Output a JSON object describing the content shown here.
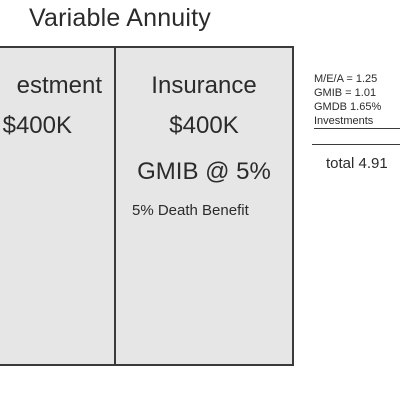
{
  "title": "Variable Annuity",
  "investment": {
    "label": "estment",
    "amount": "$400K"
  },
  "insurance": {
    "label": "Insurance",
    "amount": "$400K",
    "rider": "GMIB @ 5%",
    "death_benefit": "5% Death Benefit"
  },
  "fees": {
    "lines": [
      "M/E/A = 1.25",
      "GMIB = 1.01",
      "GMDB 1.65%",
      "Investments"
    ],
    "total": "total 4.91"
  }
}
